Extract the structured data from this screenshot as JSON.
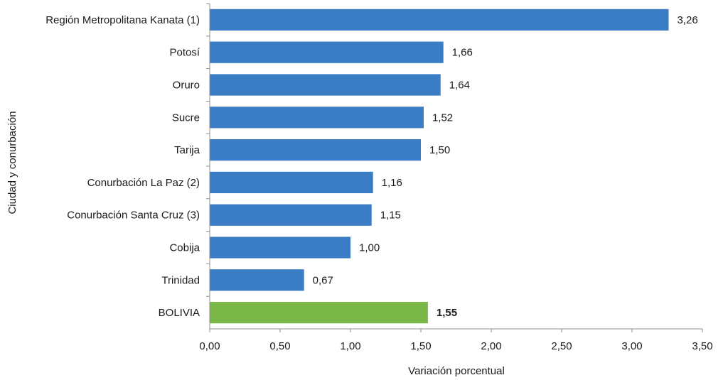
{
  "chart_data": {
    "type": "bar",
    "orientation": "horizontal",
    "categories": [
      "Región Metropolitana Kanata (1)",
      "Potosí",
      "Oruro",
      "Sucre",
      "Tarija",
      "Conurbación La Paz (2)",
      "Conurbación Santa Cruz (3)",
      "Cobija",
      "Trinidad",
      "BOLIVIA"
    ],
    "values": [
      3.26,
      1.66,
      1.64,
      1.52,
      1.5,
      1.16,
      1.15,
      1.0,
      0.67,
      1.55
    ],
    "value_labels": [
      "3,26",
      "1,66",
      "1,64",
      "1,52",
      "1,50",
      "1,16",
      "1,15",
      "1,00",
      "0,67",
      "1,55"
    ],
    "highlight_index": 9,
    "xlabel": "Variación porcentual",
    "ylabel": "Ciudad y conurbación",
    "xlim": [
      0,
      3.5
    ],
    "xticks": [
      0,
      0.5,
      1.0,
      1.5,
      2.0,
      2.5,
      3.0,
      3.5
    ],
    "xtick_labels": [
      "0,00",
      "0,50",
      "1,00",
      "1,50",
      "2,00",
      "2,50",
      "3,00",
      "3,50"
    ],
    "grid": false,
    "colors": {
      "bar": "#3a7dc4",
      "highlight": "#7ab648",
      "axis": "#8c8c8c"
    }
  }
}
